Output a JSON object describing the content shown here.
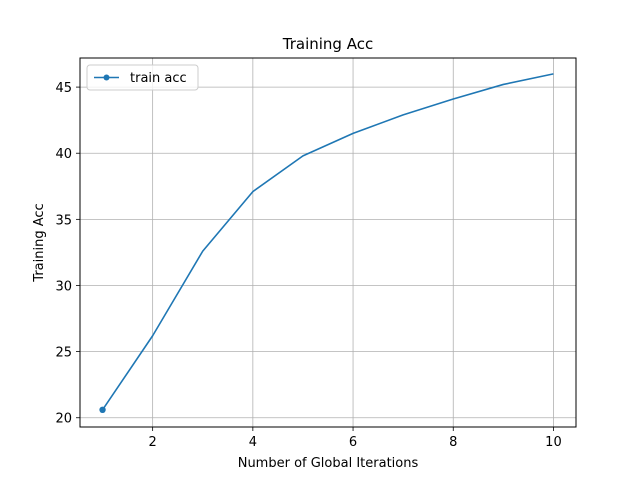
{
  "chart_data": {
    "type": "line",
    "title": "Training Acc",
    "xlabel": "Number of Global Iterations",
    "ylabel": "Training Acc",
    "xlim": [
      0.55,
      10.45
    ],
    "ylim": [
      19.3,
      47.2
    ],
    "xticks": [
      2,
      4,
      6,
      8,
      10
    ],
    "yticks": [
      20,
      25,
      30,
      35,
      40,
      45
    ],
    "grid": true,
    "legend_position": "top-left",
    "series": [
      {
        "name": "train acc",
        "color": "#1f77b4",
        "x": [
          1,
          2,
          3,
          4,
          5,
          6,
          7,
          8,
          9,
          10
        ],
        "y": [
          20.6,
          26.2,
          32.6,
          37.1,
          39.8,
          41.5,
          42.9,
          44.1,
          45.2,
          46.0
        ]
      }
    ]
  }
}
